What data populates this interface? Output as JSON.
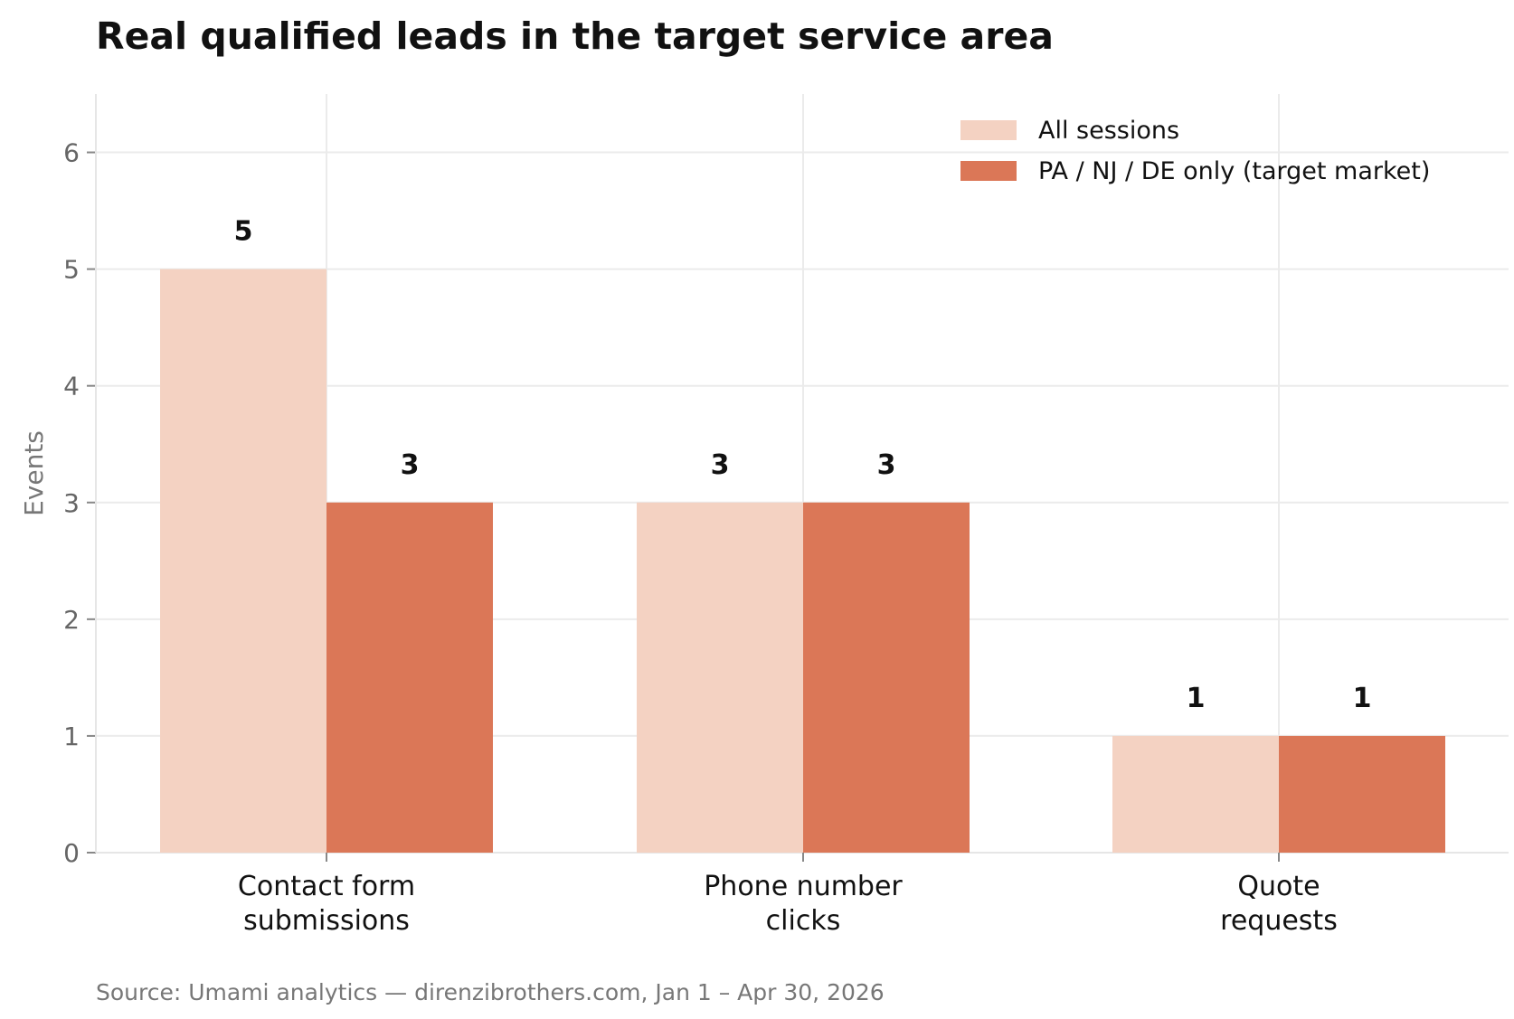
{
  "chart_data": {
    "type": "bar",
    "title": "Real qualified leads in the target service area",
    "ylabel": "Events",
    "xlabel": "",
    "categories": [
      [
        "Contact form",
        "submissions"
      ],
      [
        "Phone number",
        "clicks"
      ],
      [
        "Quote",
        "requests"
      ]
    ],
    "series": [
      {
        "name": "All sessions",
        "values": [
          5,
          3,
          1
        ],
        "color": "#f4d2c2"
      },
      {
        "name": "PA / NJ / DE only (target market)",
        "values": [
          3,
          3,
          1
        ],
        "color": "#db7757"
      }
    ],
    "ylim": [
      0,
      6.5
    ],
    "yticks": [
      0,
      1,
      2,
      3,
      4,
      5,
      6
    ],
    "grid": true,
    "legend": "top-right",
    "source": "Source: Umami analytics — direnzibrothers.com, Jan 1 – Apr 30, 2026"
  }
}
